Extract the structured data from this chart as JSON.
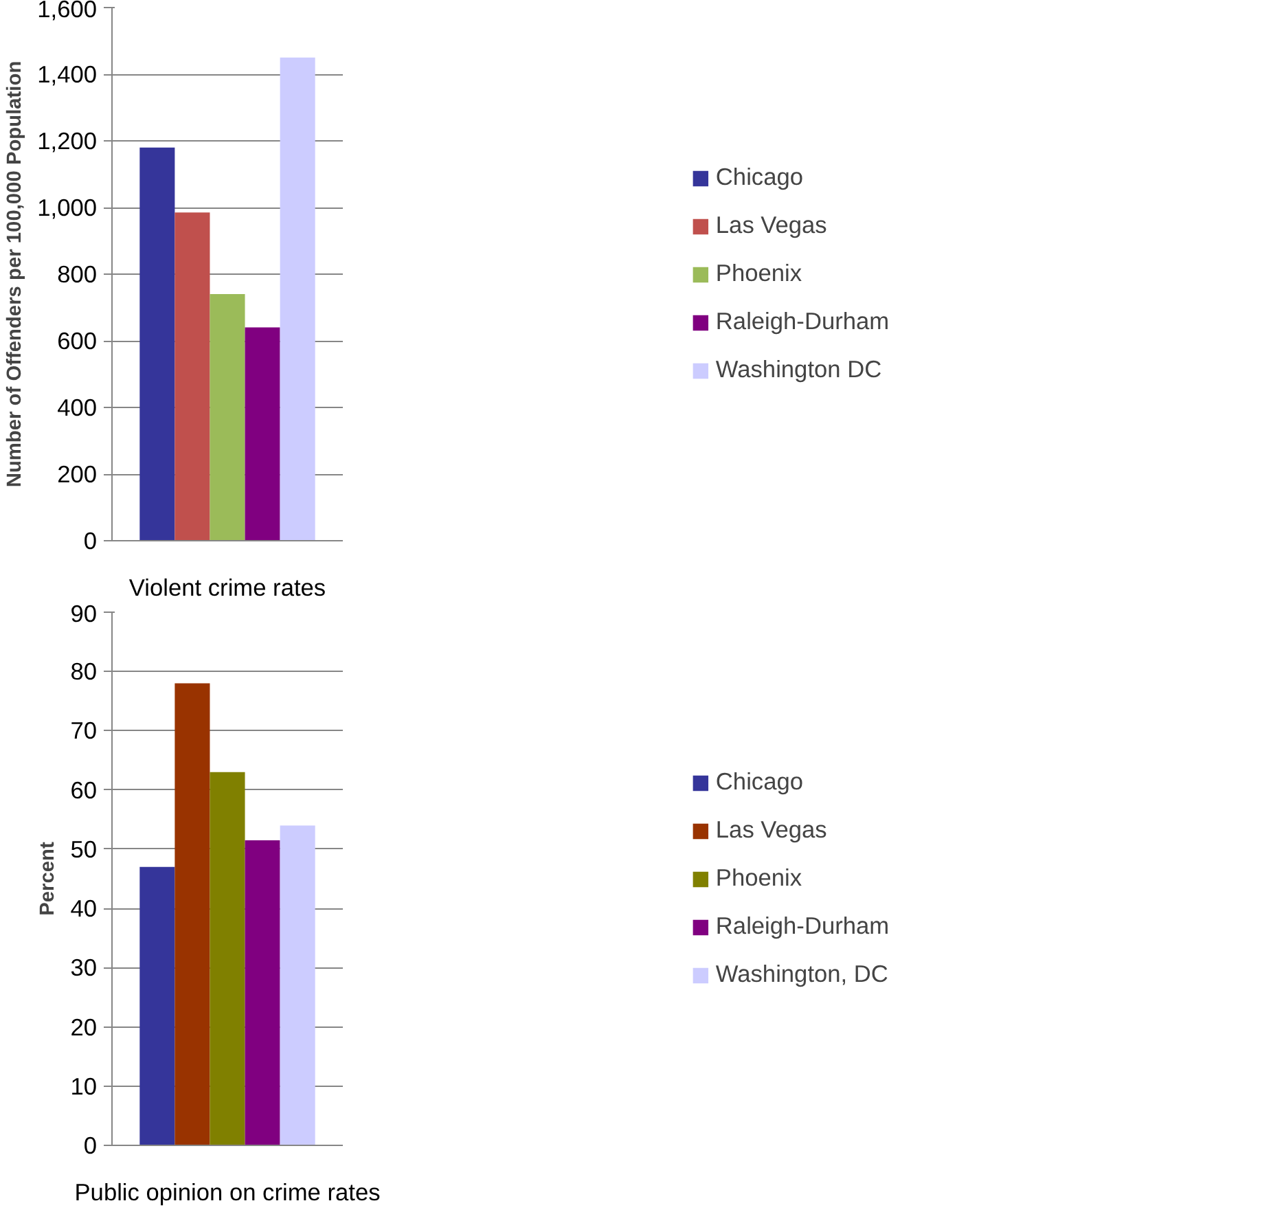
{
  "chart_data": [
    {
      "type": "bar",
      "categories": [
        "Violent crime rates"
      ],
      "ylabel": "Number of Offenders per 100,000 Population",
      "ylim": [
        0,
        1600
      ],
      "yticks": [
        {
          "value": 0,
          "label": "0"
        },
        {
          "value": 200,
          "label": "200"
        },
        {
          "value": 400,
          "label": "400"
        },
        {
          "value": 600,
          "label": "600"
        },
        {
          "value": 800,
          "label": "800"
        },
        {
          "value": 1000,
          "label": "1,000"
        },
        {
          "value": 1200,
          "label": "1,200"
        },
        {
          "value": 1400,
          "label": "1,400"
        },
        {
          "value": 1600,
          "label": "1,600"
        }
      ],
      "grid": "y",
      "legend": "right",
      "series": [
        {
          "name": "Chicago",
          "color": "#35359a",
          "values": [
            1180
          ]
        },
        {
          "name": "Las Vegas",
          "color": "#c0504d",
          "values": [
            985
          ]
        },
        {
          "name": "Phoenix",
          "color": "#9bbb59",
          "values": [
            740
          ]
        },
        {
          "name": "Raleigh-Durham",
          "color": "#800080",
          "values": [
            640
          ]
        },
        {
          "name": "Washington DC",
          "color": "#ccccff",
          "values": [
            1450
          ]
        }
      ]
    },
    {
      "type": "bar",
      "categories": [
        "Public opinion on crime rates"
      ],
      "ylabel": "Percent",
      "ylim": [
        0,
        90
      ],
      "yticks": [
        0,
        10,
        20,
        30,
        40,
        50,
        60,
        70,
        80,
        90
      ],
      "grid": "y",
      "legend": "right",
      "series": [
        {
          "name": "Chicago",
          "color": "#35359a",
          "values": [
            47
          ]
        },
        {
          "name": "Las Vegas",
          "color": "#993300",
          "values": [
            78
          ]
        },
        {
          "name": "Phoenix",
          "color": "#808000",
          "values": [
            63
          ]
        },
        {
          "name": "Raleigh-Durham",
          "color": "#800080",
          "values": [
            51.5
          ]
        },
        {
          "name": "Washington, DC",
          "color": "#ccccff",
          "values": [
            54
          ]
        }
      ]
    }
  ]
}
